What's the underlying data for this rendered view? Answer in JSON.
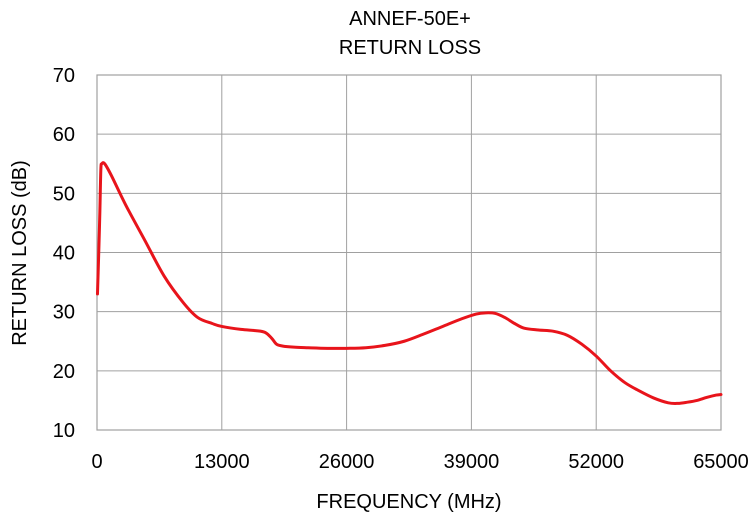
{
  "chart_data": {
    "type": "line",
    "title": [
      "ANNEF-50E+",
      "RETURN LOSS"
    ],
    "xlabel": "FREQUENCY (MHz)",
    "ylabel": "RETURN LOSS (dB)",
    "xlim": [
      0,
      65000
    ],
    "ylim": [
      10,
      70
    ],
    "xticks": [
      0,
      13000,
      26000,
      39000,
      52000,
      65000
    ],
    "xtick_labels": [
      "0",
      "13000",
      "26000",
      "39000",
      "52000",
      "65000"
    ],
    "yticks": [
      10,
      20,
      30,
      40,
      50,
      60,
      70
    ],
    "ytick_labels": [
      "10",
      "20",
      "30",
      "40",
      "50",
      "60",
      "70"
    ],
    "grid": true,
    "legend": "none",
    "colors": {
      "line": "#e8141b",
      "grid": "#a0a0a0",
      "frame": "#a0a0a0",
      "text": "#000000"
    },
    "series": [
      {
        "x": [
          50,
          200,
          300,
          400,
          500,
          800,
          1500,
          3000,
          5000,
          7000,
          9000,
          10500,
          12000,
          13000,
          15000,
          16500,
          17500,
          18200,
          18700,
          19300,
          20500,
          22000,
          24000,
          26000,
          28000,
          30000,
          32000,
          34000,
          36000,
          38000,
          39500,
          40500,
          41500,
          42500,
          43500,
          44500,
          46000,
          47500,
          49000,
          50500,
          52000,
          53500,
          55000,
          56500,
          58000,
          59500,
          60500,
          61500,
          62500,
          63500,
          64500,
          65000
        ],
        "y": [
          33,
          41,
          47,
          54,
          55,
          55,
          53,
          48,
          42,
          36,
          31.5,
          29,
          28,
          27.5,
          27,
          26.8,
          26.5,
          25.5,
          24.5,
          24.2,
          24.0,
          23.9,
          23.8,
          23.8,
          23.9,
          24.3,
          25.0,
          26.2,
          27.5,
          28.8,
          29.6,
          29.8,
          29.7,
          29.0,
          28.0,
          27.2,
          26.9,
          26.7,
          26.0,
          24.5,
          22.5,
          20.0,
          18.0,
          16.6,
          15.4,
          14.6,
          14.5,
          14.7,
          15.0,
          15.5,
          15.9,
          16.0
        ]
      }
    ]
  }
}
